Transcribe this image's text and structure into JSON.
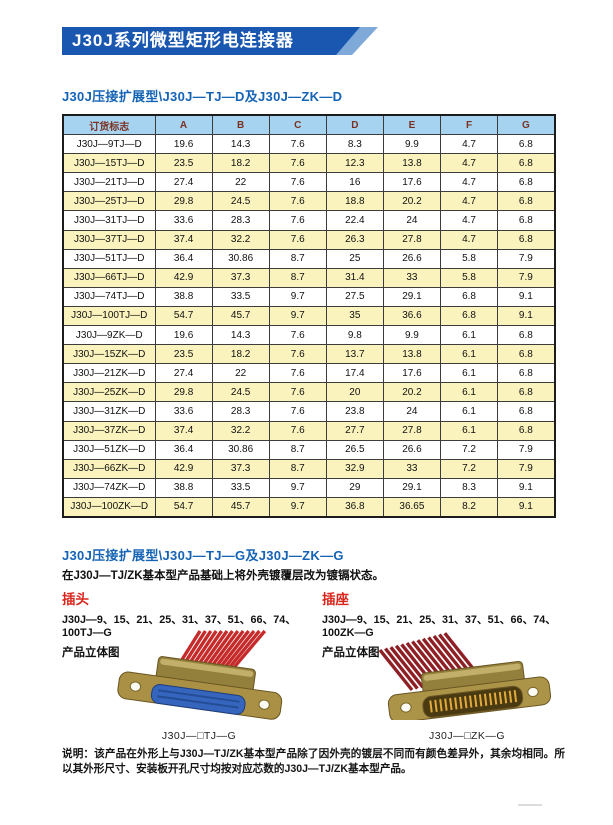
{
  "banner": {
    "title": "J30J系列微型矩形电连接器"
  },
  "sections": {
    "d_type": {
      "title": "J30J压接扩展型\\J30J—TJ—D及J30J—ZK—D"
    },
    "g_type": {
      "title": "J30J压接扩展型\\J30J—TJ—G及J30J—ZK—G",
      "description": "在J30J—TJ/ZK基本型产品基础上将外壳镀覆层改为镀镉状态。",
      "plug": {
        "heading": "插头",
        "models": "J30J—9、15、21、25、31、37、51、66、74、100TJ—G",
        "view_label": "产品立体图",
        "caption": "J30J—□TJ—G"
      },
      "socket": {
        "heading": "插座",
        "models": "J30J—9、15、21、25、31、37、51、66、74、100ZK—G",
        "view_label": "产品立体图",
        "caption": "J30J—□ZK—G"
      }
    }
  },
  "table": {
    "headers": [
      "订货标志",
      "A",
      "B",
      "C",
      "D",
      "E",
      "F",
      "G"
    ],
    "rows": [
      [
        "J30J—9TJ—D",
        "19.6",
        "14.3",
        "7.6",
        "8.3",
        "9.9",
        "4.7",
        "6.8"
      ],
      [
        "J30J—15TJ—D",
        "23.5",
        "18.2",
        "7.6",
        "12.3",
        "13.8",
        "4.7",
        "6.8"
      ],
      [
        "J30J—21TJ—D",
        "27.4",
        "22",
        "7.6",
        "16",
        "17.6",
        "4.7",
        "6.8"
      ],
      [
        "J30J—25TJ—D",
        "29.8",
        "24.5",
        "7.6",
        "18.8",
        "20.2",
        "4.7",
        "6.8"
      ],
      [
        "J30J—31TJ—D",
        "33.6",
        "28.3",
        "7.6",
        "22.4",
        "24",
        "4.7",
        "6.8"
      ],
      [
        "J30J—37TJ—D",
        "37.4",
        "32.2",
        "7.6",
        "26.3",
        "27.8",
        "4.7",
        "6.8"
      ],
      [
        "J30J—51TJ—D",
        "36.4",
        "30.86",
        "8.7",
        "25",
        "26.6",
        "5.8",
        "7.9"
      ],
      [
        "J30J—66TJ—D",
        "42.9",
        "37.3",
        "8.7",
        "31.4",
        "33",
        "5.8",
        "7.9"
      ],
      [
        "J30J—74TJ—D",
        "38.8",
        "33.5",
        "9.7",
        "27.5",
        "29.1",
        "6.8",
        "9.1"
      ],
      [
        "J30J—100TJ—D",
        "54.7",
        "45.7",
        "9.7",
        "35",
        "36.6",
        "6.8",
        "9.1"
      ],
      [
        "J30J—9ZK—D",
        "19.6",
        "14.3",
        "7.6",
        "9.8",
        "9.9",
        "6.1",
        "6.8"
      ],
      [
        "J30J—15ZK—D",
        "23.5",
        "18.2",
        "7.6",
        "13.7",
        "13.8",
        "6.1",
        "6.8"
      ],
      [
        "J30J—21ZK—D",
        "27.4",
        "22",
        "7.6",
        "17.4",
        "17.6",
        "6.1",
        "6.8"
      ],
      [
        "J30J—25ZK—D",
        "29.8",
        "24.5",
        "7.6",
        "20",
        "20.2",
        "6.1",
        "6.8"
      ],
      [
        "J30J—31ZK—D",
        "33.6",
        "28.3",
        "7.6",
        "23.8",
        "24",
        "6.1",
        "6.8"
      ],
      [
        "J30J—37ZK—D",
        "37.4",
        "32.2",
        "7.6",
        "27.7",
        "27.8",
        "6.1",
        "6.8"
      ],
      [
        "J30J—51ZK—D",
        "36.4",
        "30.86",
        "8.7",
        "26.5",
        "26.6",
        "7.2",
        "7.9"
      ],
      [
        "J30J—66ZK—D",
        "42.9",
        "37.3",
        "8.7",
        "32.9",
        "33",
        "7.2",
        "7.9"
      ],
      [
        "J30J—74ZK—D",
        "38.8",
        "33.5",
        "9.7",
        "29",
        "29.1",
        "8.3",
        "9.1"
      ],
      [
        "J30J—100ZK—D",
        "54.7",
        "45.7",
        "9.7",
        "36.8",
        "36.65",
        "8.2",
        "9.1"
      ]
    ]
  },
  "note": "说明：该产品在外形上与J30J—TJ/ZK基本型产品除了因外壳的镀层不同而有颜色差异外，其余均相同。所以其外形尺寸、安装板开孔尺寸均按对应芯数的J30J—TJ/ZK基本型产品。",
  "colors": {
    "banner_blue": "#1a57b0",
    "heading_blue": "#1563b5",
    "table_header_bg": "#a6d4f0",
    "table_header_text": "#7b3122",
    "row_alt_yellow": "#faf3bd",
    "accent_red": "#d9251c"
  }
}
